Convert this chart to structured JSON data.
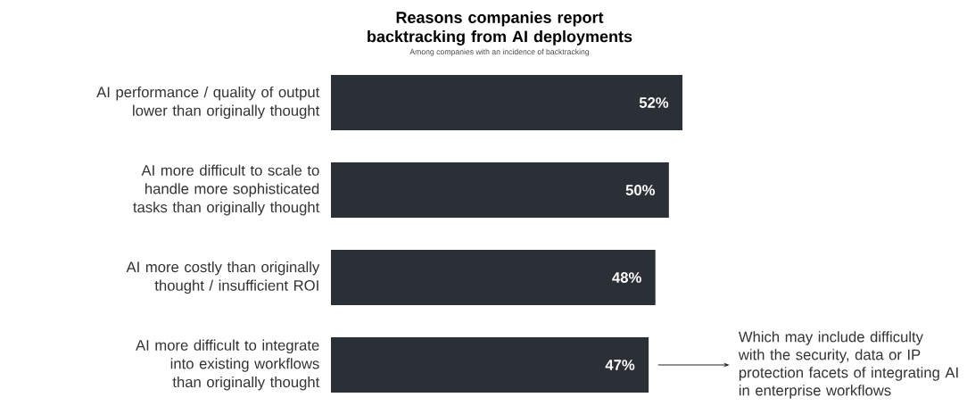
{
  "chart_data": {
    "type": "bar",
    "orientation": "horizontal",
    "title": "Reasons companies report backtracking from AI deployments",
    "subtitle": "Among companies with an incidence of backtracking",
    "categories": [
      "AI performance / quality of output lower than originally thought",
      "AI more difficult to scale to handle more sophisticated tasks than originally thought",
      "AI more costly than originally thought / insufficient ROI",
      "AI more difficult to integrate into existing workflows than originally thought"
    ],
    "values": [
      52,
      50,
      48,
      47
    ],
    "value_labels": [
      "52%",
      "50%",
      "48%",
      "47%"
    ],
    "color": "#2b2f36",
    "annotations": [
      "Which may include difficulty with the security, data or IP protection facets of integrating AI in enterprise workflows"
    ]
  }
}
